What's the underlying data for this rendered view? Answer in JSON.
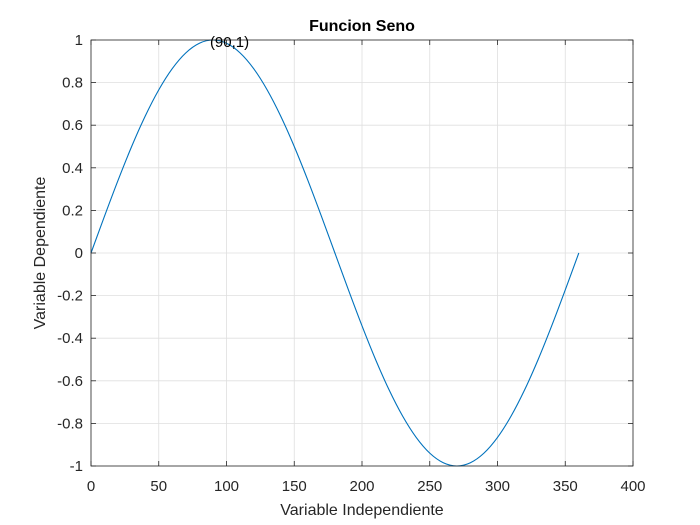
{
  "chart_data": {
    "type": "line",
    "title": "Funcion Seno",
    "xlabel": "Variable Independiente",
    "ylabel": "Variable Dependiente",
    "xlim": [
      0,
      400
    ],
    "ylim": [
      -1,
      1
    ],
    "xticks": [
      0,
      50,
      100,
      150,
      200,
      250,
      300,
      350,
      400
    ],
    "yticks": [
      -1,
      -0.8,
      -0.6,
      -0.4,
      -0.2,
      0,
      0.2,
      0.4,
      0.6,
      0.8,
      1
    ],
    "xtick_labels": [
      "0",
      "50",
      "100",
      "150",
      "200",
      "250",
      "300",
      "350",
      "400"
    ],
    "ytick_labels": [
      "-1",
      "-0.8",
      "-0.6",
      "-0.4",
      "-0.2",
      "0",
      "0.2",
      "0.4",
      "0.6",
      "0.8",
      "1"
    ],
    "grid": true,
    "series": [
      {
        "color": "#0072BD",
        "x": [
          0,
          10,
          20,
          30,
          40,
          50,
          60,
          70,
          80,
          90,
          100,
          110,
          120,
          130,
          140,
          150,
          160,
          170,
          180,
          190,
          200,
          210,
          220,
          230,
          240,
          250,
          260,
          270,
          280,
          290,
          300,
          310,
          320,
          330,
          340,
          350,
          360
        ],
        "y": [
          0,
          0.1736,
          0.342,
          0.5,
          0.6428,
          0.766,
          0.866,
          0.9397,
          0.9848,
          1,
          0.9848,
          0.9397,
          0.866,
          0.766,
          0.6428,
          0.5,
          0.342,
          0.1736,
          0,
          -0.1736,
          -0.342,
          -0.5,
          -0.6428,
          -0.766,
          -0.866,
          -0.9397,
          -0.9848,
          -1,
          -0.9848,
          -0.9397,
          -0.866,
          -0.766,
          -0.6428,
          -0.5,
          -0.342,
          -0.1736,
          0
        ]
      }
    ],
    "annotations": [
      {
        "text": "(90,1)",
        "x": 90,
        "y": 1
      }
    ]
  }
}
